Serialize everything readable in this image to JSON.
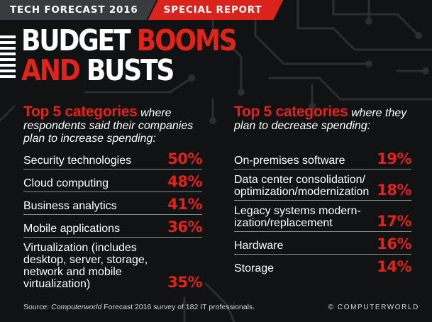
{
  "banner": {
    "section": "TECH FORECAST 2016",
    "report": "SPECIAL REPORT"
  },
  "headline": {
    "line1_white": "BUDGET ",
    "line1_red": "BOOMS",
    "line2_red": "AND ",
    "line2_white": "BUSTS"
  },
  "chart_data": [
    {
      "type": "table",
      "title_bold": "Top 5 categories",
      "title_rest": "where respondents said their companies plan to increase spending:",
      "categories": [
        "Security technologies",
        "Cloud computing",
        "Business analytics",
        "Mobile applications",
        "Virtualization (includes desktop, server, storage, network and mobile virtualization)"
      ],
      "values": [
        50,
        48,
        41,
        36,
        35
      ],
      "unit": "%"
    },
    {
      "type": "table",
      "title_bold": "Top 5 categories",
      "title_rest": "where they plan to decrease spending:",
      "categories": [
        "On-premises software",
        "Data center consolidation/ optimization/modernization",
        "Legacy systems modern- ization/replacement",
        "Hardware",
        "Storage"
      ],
      "values": [
        19,
        18,
        17,
        16,
        14
      ],
      "unit": "%"
    }
  ],
  "footer": {
    "prefix": "Source: ",
    "pub": "Computerworld",
    "rest": " Forecast 2016 survey of 182 IT professionals."
  },
  "credit": "© COMPUTERWORLD",
  "colors": {
    "accent": "#e2231a",
    "background": "#111214",
    "banner_dark": "#3a3b3e"
  }
}
